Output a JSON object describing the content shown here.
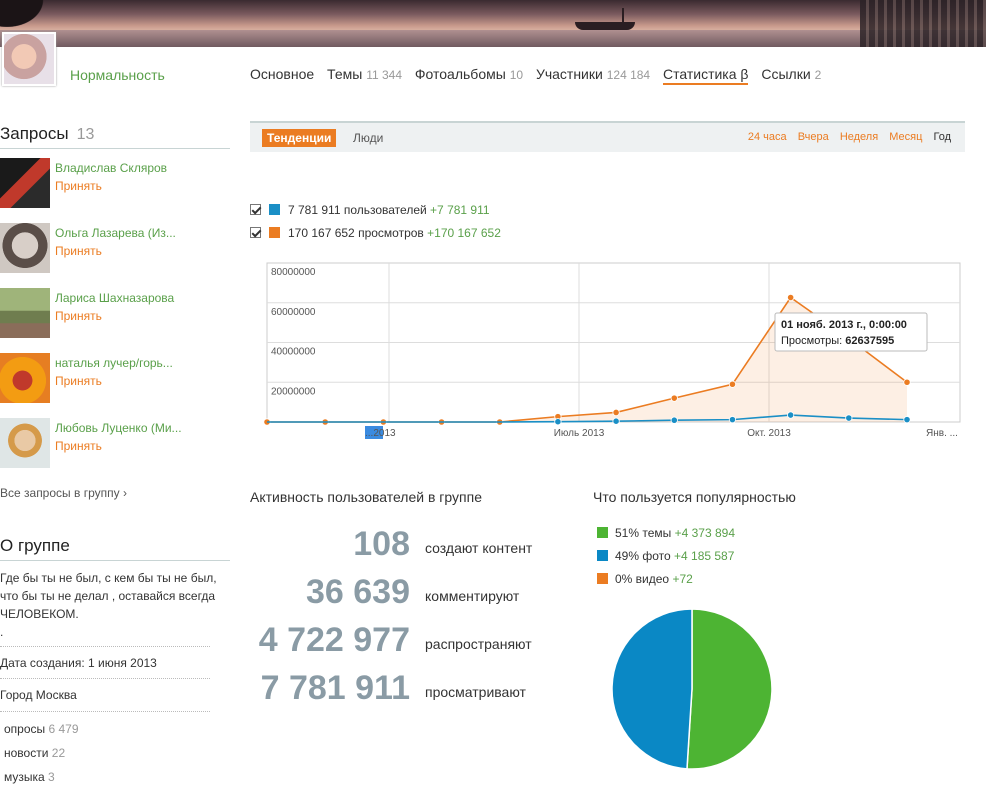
{
  "group": {
    "name": "Нормальность"
  },
  "nav": {
    "tabs": [
      {
        "label": "Основное",
        "count": ""
      },
      {
        "label": "Темы",
        "count": "11 344"
      },
      {
        "label": "Фотоальбомы",
        "count": "10"
      },
      {
        "label": "Участники",
        "count": "124 184"
      },
      {
        "label": "Статистика β",
        "count": ""
      },
      {
        "label": "Ссылки",
        "count": "2"
      }
    ],
    "active_index": 4
  },
  "requests": {
    "title": "Запросы",
    "count": "13",
    "items": [
      {
        "name": "Владислав Скляров",
        "action": "Принять"
      },
      {
        "name": "Ольга Лазарева (Из...",
        "action": "Принять"
      },
      {
        "name": "Лариса Шахназарова",
        "action": "Принять"
      },
      {
        "name": "наталья лучер/горь...",
        "action": "Принять"
      },
      {
        "name": "Любовь Луценко (Ми...",
        "action": "Принять"
      }
    ],
    "all_link": "Все запросы в группу ›"
  },
  "about": {
    "title": "О группе",
    "description": "Где бы ты не был, с кем бы ты не был, что бы ты не делал , оставайся всегда ЧЕЛОВЕКОМ.",
    "dot": ".",
    "created": "Дата создания: 1 июня 2013",
    "city": "Город Москва",
    "tags": [
      {
        "label": "опросы",
        "count": "6 479"
      },
      {
        "label": "новости",
        "count": "22"
      },
      {
        "label": "музыка",
        "count": "3"
      }
    ]
  },
  "stats": {
    "tab_trends": "Тенденции",
    "tab_people": "Люди",
    "periods": [
      "24 часа",
      "Вчера",
      "Неделя",
      "Месяц",
      "Год"
    ],
    "current_period": "Год",
    "legend": [
      {
        "text": "7 781 911 пользователей",
        "plus": "+7 781 911",
        "color": "#1a8fc6"
      },
      {
        "text": "170 167 652 просмотров",
        "plus": "+170 167 652",
        "color": "#eb7c22"
      }
    ]
  },
  "chart_data": {
    "type": "line",
    "ylim": [
      0,
      80000000
    ],
    "yticks": [
      "80000000",
      "60000000",
      "40000000",
      "20000000"
    ],
    "xticks": [
      "...2013",
      "Июль 2013",
      "Окт. 2013",
      "Янв. ..."
    ],
    "series": [
      {
        "name": "просмотров",
        "color": "#eb7c22",
        "values": [
          0,
          0,
          0,
          0,
          0,
          2700000,
          4800000,
          12000000,
          19000000,
          62637595,
          42000000,
          20000000
        ]
      },
      {
        "name": "пользователей",
        "color": "#1a8fc6",
        "values": [
          0,
          0,
          0,
          0,
          0,
          150000,
          400000,
          900000,
          1200000,
          3500000,
          2000000,
          1200000
        ]
      }
    ],
    "tooltip": {
      "title": "01 нояб. 2013 г., 0:00:00",
      "label": "Просмотры:",
      "value": "62637595",
      "point_index": 9
    }
  },
  "activity": {
    "title": "Активность пользователей в группе",
    "rows": [
      {
        "num": "108",
        "label": "создают контент"
      },
      {
        "num": "36 639",
        "label": "комментируют"
      },
      {
        "num": "4 722 977",
        "label": "распространяют"
      },
      {
        "num": "7 781 911",
        "label": "просматривают"
      }
    ]
  },
  "popularity": {
    "title": "Что пользуется популярностью",
    "items": [
      {
        "text": "51% темы",
        "plus": "+4 373 894",
        "color": "#4db433",
        "share": 51
      },
      {
        "text": "49% фото",
        "plus": "+4 185 587",
        "color": "#0a88c5",
        "share": 49
      },
      {
        "text": "0% видео",
        "plus": "+72",
        "color": "#eb7c22",
        "share": 0
      }
    ]
  }
}
